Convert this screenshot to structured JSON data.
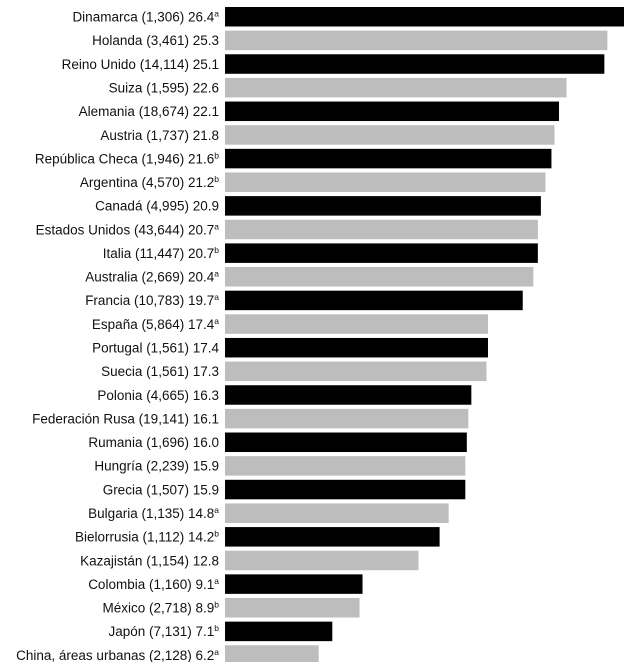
{
  "chart_data": {
    "type": "bar",
    "orientation": "horizontal",
    "title": "",
    "xlabel": "",
    "ylabel": "",
    "xlim": [
      0,
      26.4
    ],
    "grid": false,
    "legend": "none",
    "colors": {
      "dark": "#000000",
      "light": "#bdbdbd"
    },
    "bars": [
      {
        "country": "Dinamarca",
        "n": "1,306",
        "value": 26.4,
        "note": "a",
        "color": "dark"
      },
      {
        "country": "Holanda",
        "n": "3,461",
        "value": 25.3,
        "note": "",
        "color": "light"
      },
      {
        "country": "Reino Unido",
        "n": "14,114",
        "value": 25.1,
        "note": "",
        "color": "dark"
      },
      {
        "country": "Suiza",
        "n": "1,595",
        "value": 22.6,
        "note": "",
        "color": "light"
      },
      {
        "country": "Alemania",
        "n": "18,674",
        "value": 22.1,
        "note": "",
        "color": "dark"
      },
      {
        "country": "Austria",
        "n": "1,737",
        "value": 21.8,
        "note": "",
        "color": "light"
      },
      {
        "country": "República Checa",
        "n": "1,946",
        "value": 21.6,
        "note": "b",
        "color": "dark"
      },
      {
        "country": "Argentina",
        "n": "4,570",
        "value": 21.2,
        "note": "b",
        "color": "light"
      },
      {
        "country": "Canadá",
        "n": "4,995",
        "value": 20.9,
        "note": "",
        "color": "dark"
      },
      {
        "country": "Estados Unidos",
        "n": "43,644",
        "value": 20.7,
        "note": "a",
        "color": "light"
      },
      {
        "country": "Italia",
        "n": "11,447",
        "value": 20.7,
        "note": "b",
        "color": "dark"
      },
      {
        "country": "Australia",
        "n": "2,669",
        "value": 20.4,
        "note": "a",
        "color": "light"
      },
      {
        "country": "Francia",
        "n": "10,783",
        "value": 19.7,
        "note": "a",
        "color": "dark"
      },
      {
        "country": "España",
        "n": "5,864",
        "value": 17.4,
        "note": "a",
        "color": "light"
      },
      {
        "country": "Portugal",
        "n": "1,561",
        "value": 17.4,
        "note": "",
        "color": "dark"
      },
      {
        "country": "Suecia",
        "n": "1,561",
        "value": 17.3,
        "note": "",
        "color": "light"
      },
      {
        "country": "Polonia",
        "n": "4,665",
        "value": 16.3,
        "note": "",
        "color": "dark"
      },
      {
        "country": "Federación Rusa",
        "n": "19,141",
        "value": 16.1,
        "note": "",
        "color": "light"
      },
      {
        "country": "Rumania",
        "n": "1,696",
        "value": 16.0,
        "note": "",
        "color": "dark"
      },
      {
        "country": "Hungría",
        "n": "2,239",
        "value": 15.9,
        "note": "",
        "color": "light"
      },
      {
        "country": "Grecia",
        "n": "1,507",
        "value": 15.9,
        "note": "",
        "color": "dark"
      },
      {
        "country": "Bulgaria",
        "n": "1,135",
        "value": 14.8,
        "note": "a",
        "color": "light"
      },
      {
        "country": "Bielorrusia",
        "n": "1,112",
        "value": 14.2,
        "note": "b",
        "color": "dark"
      },
      {
        "country": "Kazajistán",
        "n": "1,154",
        "value": 12.8,
        "note": "",
        "color": "light"
      },
      {
        "country": "Colombia",
        "n": "1,160",
        "value": 9.1,
        "note": "a",
        "color": "dark"
      },
      {
        "country": "México",
        "n": "2,718",
        "value": 8.9,
        "note": "b",
        "color": "light"
      },
      {
        "country": "Japón",
        "n": "7,131",
        "value": 7.1,
        "note": "b",
        "color": "dark"
      },
      {
        "country": "China, áreas urbanas",
        "n": "2,128",
        "value": 6.2,
        "note": "a",
        "color": "light"
      }
    ]
  }
}
